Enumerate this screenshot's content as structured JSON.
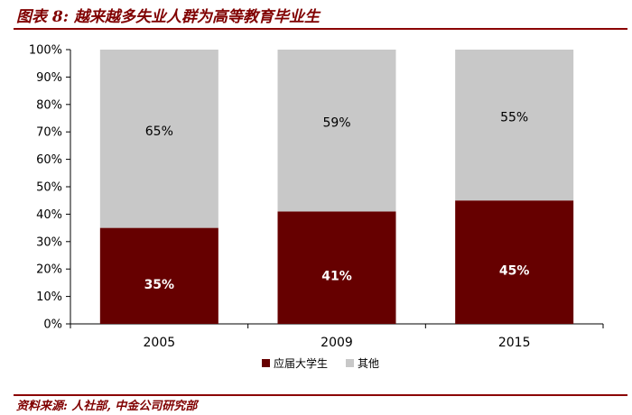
{
  "title": "图表 8:  越来越多失业人群为高等教育毕业生",
  "source": "资料来源:   人社部, 中金公司研究部",
  "colors": {
    "accent": "#800000",
    "bar_primary": "#660000",
    "bar_secondary": "#c8c8c8"
  },
  "chart_data": {
    "type": "bar",
    "stacked": true,
    "categories": [
      "2005",
      "2009",
      "2015"
    ],
    "series": [
      {
        "name": "应届大学生",
        "values": [
          35,
          41,
          45
        ],
        "labels": [
          "35%",
          "41%",
          "45%"
        ],
        "color": "#660000"
      },
      {
        "name": "其他",
        "values": [
          65,
          59,
          55
        ],
        "labels": [
          "65%",
          "59%",
          "55%"
        ],
        "color": "#c8c8c8"
      }
    ],
    "ylim": [
      0,
      100
    ],
    "yticks": [
      "0%",
      "10%",
      "20%",
      "30%",
      "40%",
      "50%",
      "60%",
      "70%",
      "80%",
      "90%",
      "100%"
    ],
    "xlabel": "",
    "ylabel": "",
    "grid": false,
    "legend": "bottom-center"
  }
}
